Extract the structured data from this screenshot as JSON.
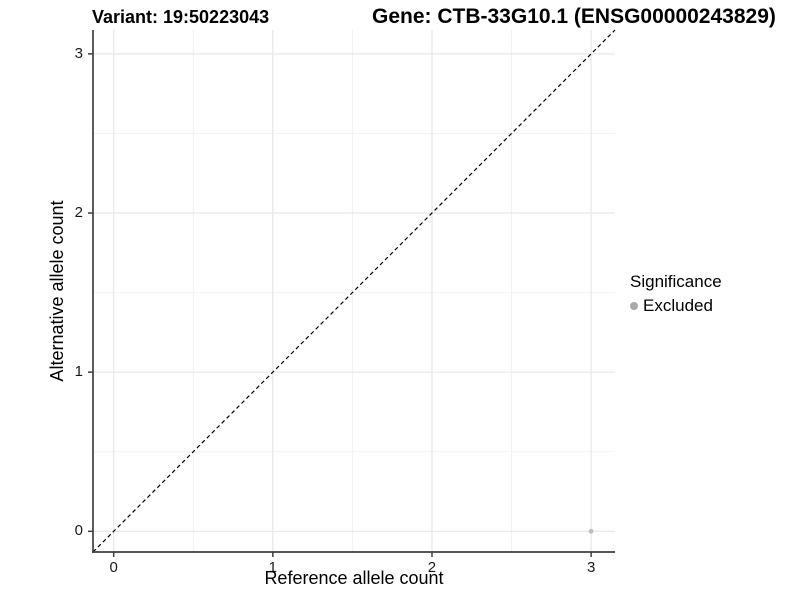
{
  "figure": {
    "title_left": "Variant: 19:50223043",
    "title_right": "Gene: CTB-33G10.1 (ENSG00000243829)"
  },
  "chart_data": {
    "type": "scatter",
    "title_left": "Variant: 19:50223043",
    "title_right": "Gene: CTB-33G10.1 (ENSG00000243829)",
    "xlabel": "Reference allele count",
    "ylabel": "Alternative allele count",
    "xlim": [
      -0.13,
      3.15
    ],
    "ylim": [
      -0.13,
      3.15
    ],
    "x_ticks": [
      0,
      1,
      2,
      3
    ],
    "y_ticks": [
      0,
      1,
      2,
      3
    ],
    "x_minor_ticks": [
      0.5,
      1.5,
      2.5
    ],
    "y_minor_ticks": [
      0.5,
      1.5,
      2.5
    ],
    "grid": "major+minor",
    "identity_line": {
      "type": "y=x",
      "style": "dashed",
      "color": "#000000"
    },
    "series": [
      {
        "name": "Excluded",
        "color": "#bdbdbd",
        "points": [
          {
            "x": 3,
            "y": 0
          }
        ]
      }
    ],
    "legend": {
      "title": "Significance",
      "position": "right",
      "items": [
        {
          "label": "Excluded",
          "color": "#a9a9a9"
        }
      ]
    },
    "colors": {
      "axis_line": "#3f3f3f",
      "grid_major": "#e7e7e7",
      "grid_minor": "#f2f2f2",
      "tick_text": "#1a1a1a",
      "background": "#ffffff"
    }
  }
}
